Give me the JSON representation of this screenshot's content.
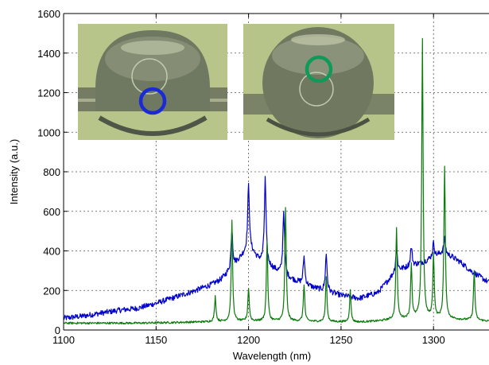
{
  "chart_data": {
    "type": "line",
    "xlabel": "Wavelength (nm)",
    "ylabel": "Intensity (a.u.)",
    "xlim": [
      1100,
      1330
    ],
    "ylim": [
      0,
      1600
    ],
    "xticks": [
      1100,
      1150,
      1200,
      1250,
      1300
    ],
    "yticks": [
      0,
      200,
      400,
      600,
      800,
      1000,
      1200,
      1400,
      1600
    ],
    "grid": true,
    "series": [
      {
        "color": "#0000cc",
        "x": [
          1100,
          1110,
          1120,
          1130,
          1140,
          1150,
          1160,
          1170,
          1180,
          1185,
          1190,
          1195,
          1198,
          1200,
          1202,
          1205,
          1210,
          1215,
          1220,
          1230,
          1240,
          1250,
          1260,
          1270,
          1280,
          1290,
          1295,
          1300,
          1305,
          1310,
          1315,
          1320,
          1330
        ],
        "y": [
          60,
          70,
          85,
          100,
          110,
          135,
          165,
          195,
          230,
          255,
          300,
          360,
          390,
          410,
          395,
          360,
          330,
          300,
          270,
          230,
          200,
          175,
          160,
          190,
          300,
          330,
          345,
          370,
          390,
          370,
          340,
          300,
          240
        ],
        "peaks": [
          [
            1191,
            510
          ],
          [
            1200,
            730
          ],
          [
            1209,
            765
          ],
          [
            1219,
            600
          ],
          [
            1230,
            370
          ],
          [
            1242,
            380
          ],
          [
            1280,
            410
          ],
          [
            1288,
            420
          ],
          [
            1300,
            440
          ],
          [
            1306,
            460
          ]
        ]
      },
      {
        "color": "#0a7a0a",
        "x": [
          1100,
          1120,
          1140,
          1160,
          1180,
          1200,
          1220,
          1240,
          1260,
          1270,
          1280,
          1290,
          1300,
          1310,
          1320,
          1330
        ],
        "y": [
          35,
          35,
          35,
          38,
          42,
          45,
          45,
          42,
          40,
          45,
          55,
          60,
          60,
          55,
          50,
          45
        ],
        "peaks": [
          [
            1182,
            170
          ],
          [
            1191,
            550
          ],
          [
            1200,
            210
          ],
          [
            1210,
            450
          ],
          [
            1220,
            620
          ],
          [
            1230,
            230
          ],
          [
            1242,
            270
          ],
          [
            1255,
            200
          ],
          [
            1280,
            520
          ],
          [
            1288,
            330
          ],
          [
            1294,
            1470
          ],
          [
            1300,
            380
          ],
          [
            1306,
            820
          ],
          [
            1322,
            300
          ]
        ]
      }
    ],
    "insets": [
      {
        "marker_color": "#1a2bd6"
      },
      {
        "marker_color": "#0f9a5a"
      }
    ]
  }
}
